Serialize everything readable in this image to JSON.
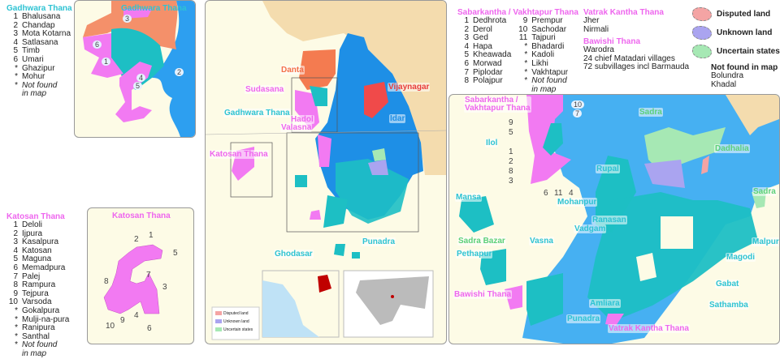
{
  "gadhwara": {
    "title": "Gadhwara Thana",
    "inset_title": "Gadhwara Thana",
    "items": [
      {
        "n": "1",
        "name": "Bhalusana"
      },
      {
        "n": "2",
        "name": "Chandap"
      },
      {
        "n": "3",
        "name": "Mota Kotarna"
      },
      {
        "n": "4",
        "name": "Satlasana"
      },
      {
        "n": "5",
        "name": "Timb"
      },
      {
        "n": "6",
        "name": "Umari"
      },
      {
        "n": "*",
        "name": "Ghazipur"
      },
      {
        "n": "*",
        "name": "Mohur"
      }
    ],
    "not_found": "Not found",
    "not_found2": "in map"
  },
  "katosan": {
    "title": "Katosan Thana",
    "inset_title": "Katosan Thana",
    "items": [
      {
        "n": "1",
        "name": "Deloli"
      },
      {
        "n": "2",
        "name": "Ijpura"
      },
      {
        "n": "3",
        "name": "Kasalpura"
      },
      {
        "n": "4",
        "name": "Katosan"
      },
      {
        "n": "5",
        "name": "Maguna"
      },
      {
        "n": "6",
        "name": "Memadpura"
      },
      {
        "n": "7",
        "name": "Palej"
      },
      {
        "n": "8",
        "name": "Rampura"
      },
      {
        "n": "9",
        "name": "Tejpura"
      },
      {
        "n": "10",
        "name": "Varsoda"
      },
      {
        "n": "*",
        "name": "Gokalpura"
      },
      {
        "n": "*",
        "name": "Mulji-na-pura"
      },
      {
        "n": "*",
        "name": "Ranipura"
      },
      {
        "n": "*",
        "name": "Santhal"
      }
    ],
    "not_found": "Not found",
    "not_found2": "in map"
  },
  "sabarkantha": {
    "title": "Sabarkantha / Vakhtapur Thana",
    "col1": [
      {
        "n": "1",
        "name": "Dedhrota"
      },
      {
        "n": "2",
        "name": "Derol"
      },
      {
        "n": "3",
        "name": "Ged"
      },
      {
        "n": "4",
        "name": "Hapa"
      },
      {
        "n": "5",
        "name": "Kheawada"
      },
      {
        "n": "6",
        "name": "Morwad"
      },
      {
        "n": "7",
        "name": "Piplodar"
      },
      {
        "n": "8",
        "name": "Polajpur"
      }
    ],
    "col2": [
      {
        "n": "9",
        "name": "Prempur"
      },
      {
        "n": "10",
        "name": "Sachodar"
      },
      {
        "n": "11",
        "name": "Tajpuri"
      },
      {
        "n": "*",
        "name": "Bhadardi"
      },
      {
        "n": "*",
        "name": "Kadoli"
      },
      {
        "n": "*",
        "name": "Likhi"
      },
      {
        "n": "*",
        "name": "Vakhtapur"
      }
    ],
    "not_found": "Not found",
    "not_found2": "in map"
  },
  "vatrak": {
    "title": "Vatrak Kantha Thana",
    "items": [
      "Jher",
      "Nirmali"
    ]
  },
  "bawishi": {
    "title": "Bawishi Thana",
    "items": [
      "Warodra",
      "24 chief Matadari villages",
      "72 subvillages incl Barmauda"
    ]
  },
  "legend": {
    "disputed": "Disputed land",
    "unknown": "Unknown land",
    "uncertain": "Uncertain states",
    "not_found_title": "Not found in map",
    "not_found_items": [
      "Bolundra",
      "Khadal"
    ],
    "colors": {
      "disputed": "#f4a4a4",
      "unknown": "#aaa4f0",
      "uncertain": "#a6e8b4"
    }
  },
  "main_map": {
    "labels": {
      "danta": "Danta",
      "sudasana": "Sudasana",
      "gadhwara": "Gadhwara Thana",
      "hadol": "Hadol",
      "valasna": "Valasna",
      "vijaynagar": "Vijaynagar",
      "idar": "Idar",
      "katosan": "Katosan Thana",
      "punadra": "Punadra",
      "ghodasar": "Ghodasar"
    },
    "mini_legend": {
      "disputed": "Disputed land",
      "unknown": "Unknown land",
      "uncertain": "Uncertain states"
    }
  },
  "right_inset": {
    "labels": {
      "sabarkantha1": "Sabarkantha /",
      "sabarkantha2": "Vakhtapur Thana",
      "ilol": "Ilol",
      "sadra": "Sadra",
      "sadra2": "Sadra",
      "dadhalia": "Dadhalia",
      "rupal": "Rupal",
      "mohanpur": "Mohanpur",
      "mansa": "Mansa",
      "ranasan": "Ranasan",
      "vadgam": "Vadgam",
      "sadra_bazar": "Sadra Bazar",
      "vasna": "Vasna",
      "pethapur": "Pethapur",
      "malpur": "Malpur",
      "magodi": "Magodi",
      "gabat": "Gabat",
      "sathamba": "Sathamba",
      "bawishi": "Bawishi Thana",
      "amliara": "Amliara",
      "punadra": "Punadra",
      "vatrak": "Vatrak Kantha Thana"
    },
    "numbers": [
      "10",
      "7",
      "9",
      "5",
      "1",
      "2",
      "8",
      "3",
      "6",
      "11",
      "4"
    ]
  },
  "colors": {
    "idar": "#1e8fe6",
    "light_blue": "#46b0f2",
    "teal": "#1dbfc4",
    "pink": "#f27af2",
    "danta": "#f47b50",
    "vijaynagar": "#f04a4a",
    "land": "#fdfbe6",
    "foreign": "#f4dcae"
  }
}
